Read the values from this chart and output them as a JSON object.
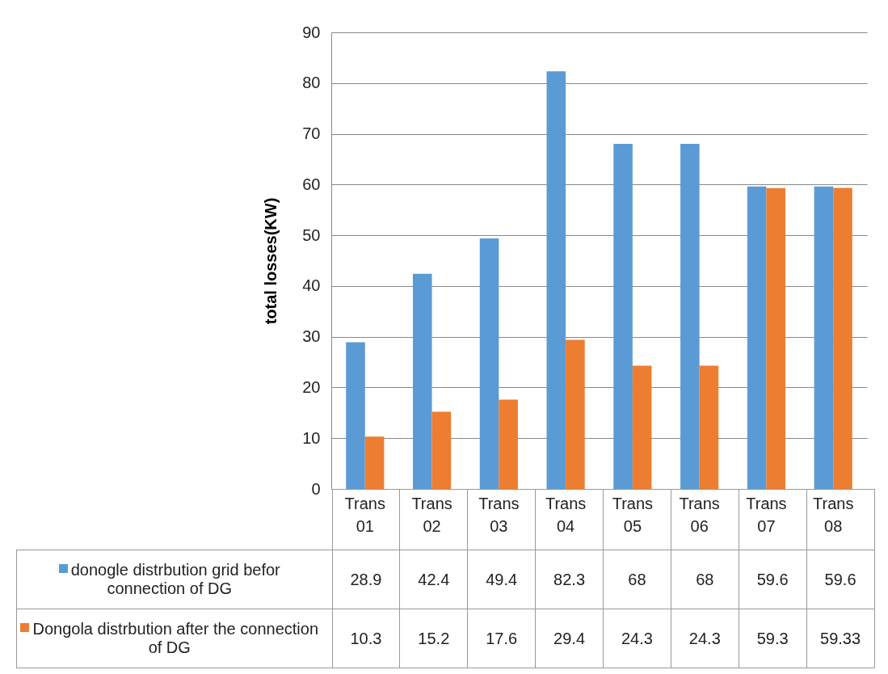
{
  "chart_data": {
    "type": "bar",
    "ylabel": "total losses(KW)",
    "categories": [
      "Trans 01",
      "Trans 02",
      "Trans 03",
      "Trans 04",
      "Trans 05",
      "Trans 06",
      "Trans 07",
      "Trans 08"
    ],
    "series": [
      {
        "name": "donogle distrbution grid befor connection of DG",
        "color": "#5b9bd5",
        "values": [
          28.9,
          42.4,
          49.4,
          82.3,
          68,
          68,
          59.6,
          59.6
        ]
      },
      {
        "name": "Dongola distrbution after the connection of DG",
        "color": "#ed7d31",
        "values": [
          10.3,
          15.2,
          17.6,
          29.4,
          24.3,
          24.3,
          59.3,
          59.33
        ]
      }
    ],
    "ylim": [
      0,
      90
    ],
    "yticks": [
      0,
      10,
      20,
      30,
      40,
      50,
      60,
      70,
      80,
      90
    ],
    "grid": "y",
    "legend": "bottom",
    "data_labels": true
  }
}
